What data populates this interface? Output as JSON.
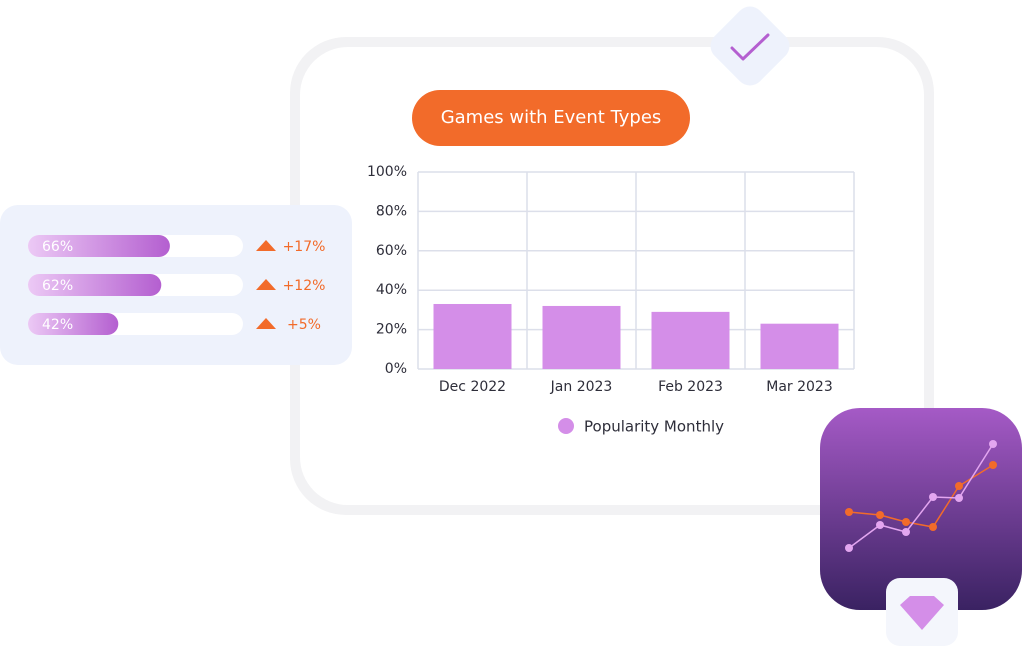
{
  "chart_data": [
    {
      "type": "bar",
      "title": "Games with Event Types",
      "categories": [
        "Dec 2022",
        "Jan 2023",
        "Feb 2023",
        "Mar 2023"
      ],
      "series": [
        {
          "name": "Popularity Monthly",
          "color": "#d48ee8",
          "values": [
            33,
            32,
            29,
            23
          ]
        }
      ],
      "ylim": [
        0,
        100
      ],
      "yticks": [
        {
          "value": 0,
          "label": "0%"
        },
        {
          "value": 20,
          "label": "20%"
        },
        {
          "value": 40,
          "label": "40%"
        },
        {
          "value": 60,
          "label": "60%"
        },
        {
          "value": 80,
          "label": "80%"
        },
        {
          "value": 100,
          "label": "100%"
        }
      ],
      "grid": true
    },
    {
      "type": "progress",
      "values": [
        66,
        62,
        42
      ],
      "value_labels": [
        "66%",
        "62%",
        "42%"
      ],
      "changes": [
        17,
        12,
        5
      ],
      "change_labels": [
        "+17%",
        "+12%",
        "+5%"
      ],
      "xlim": [
        0,
        100
      ],
      "color": "#b45fd0",
      "change_color": "#f26b2a"
    }
  ]
}
